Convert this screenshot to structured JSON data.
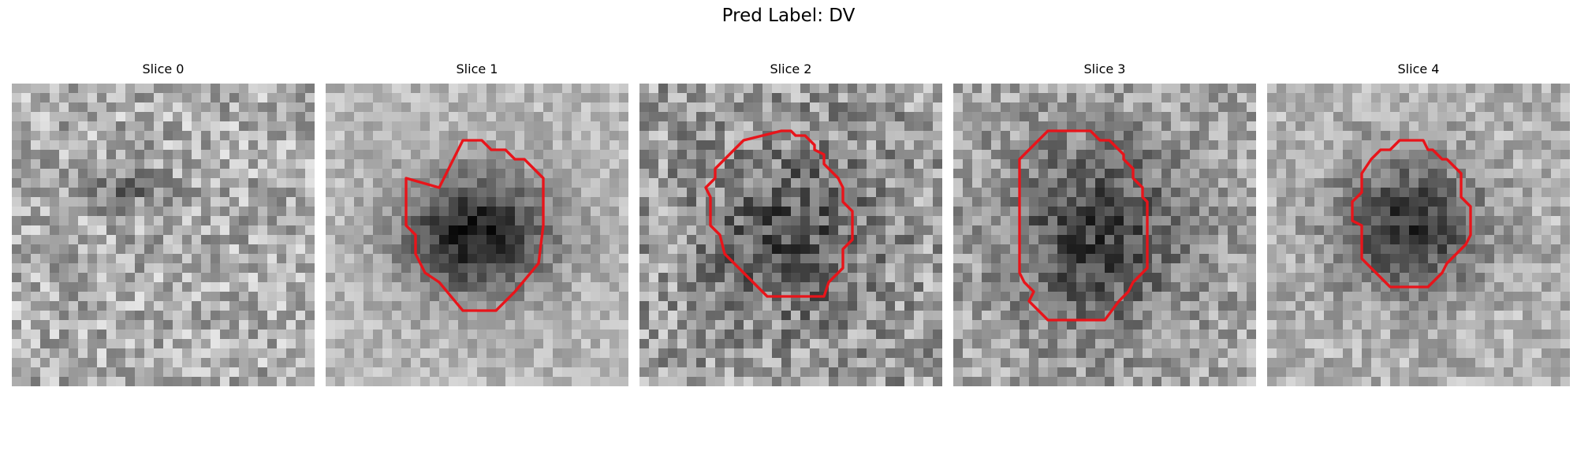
{
  "figure": {
    "title": "Pred Label: DV"
  },
  "colors": {
    "contour": "#e8141a",
    "background": "#ffffff"
  },
  "grid_size": 32,
  "panels": [
    {
      "title": "Slice 0",
      "has_contour": false,
      "dark_blob": {
        "cx": 12,
        "cy": 11,
        "rx": 5,
        "ry": 3,
        "strength": 0.22
      },
      "mean_brightness": 0.68,
      "noise": 0.28,
      "seed": 11
    },
    {
      "title": "Slice 1",
      "has_contour": true,
      "dark_blob": {
        "cx": 16,
        "cy": 16,
        "rx": 10,
        "ry": 8,
        "strength": 0.62
      },
      "mean_brightness": 0.72,
      "noise": 0.16,
      "seed": 23
    },
    {
      "title": "Slice 2",
      "has_contour": true,
      "dark_blob": {
        "cx": 16,
        "cy": 16,
        "rx": 11,
        "ry": 11,
        "strength": 0.3
      },
      "mean_brightness": 0.62,
      "noise": 0.3,
      "seed": 37
    },
    {
      "title": "Slice 3",
      "has_contour": true,
      "dark_blob": {
        "cx": 15,
        "cy": 16,
        "rx": 12,
        "ry": 13,
        "strength": 0.4
      },
      "mean_brightness": 0.66,
      "noise": 0.24,
      "seed": 53
    },
    {
      "title": "Slice 4",
      "has_contour": true,
      "dark_blob": {
        "cx": 15,
        "cy": 15,
        "rx": 10,
        "ry": 9,
        "strength": 0.48
      },
      "mean_brightness": 0.7,
      "noise": 0.2,
      "seed": 71
    }
  ]
}
